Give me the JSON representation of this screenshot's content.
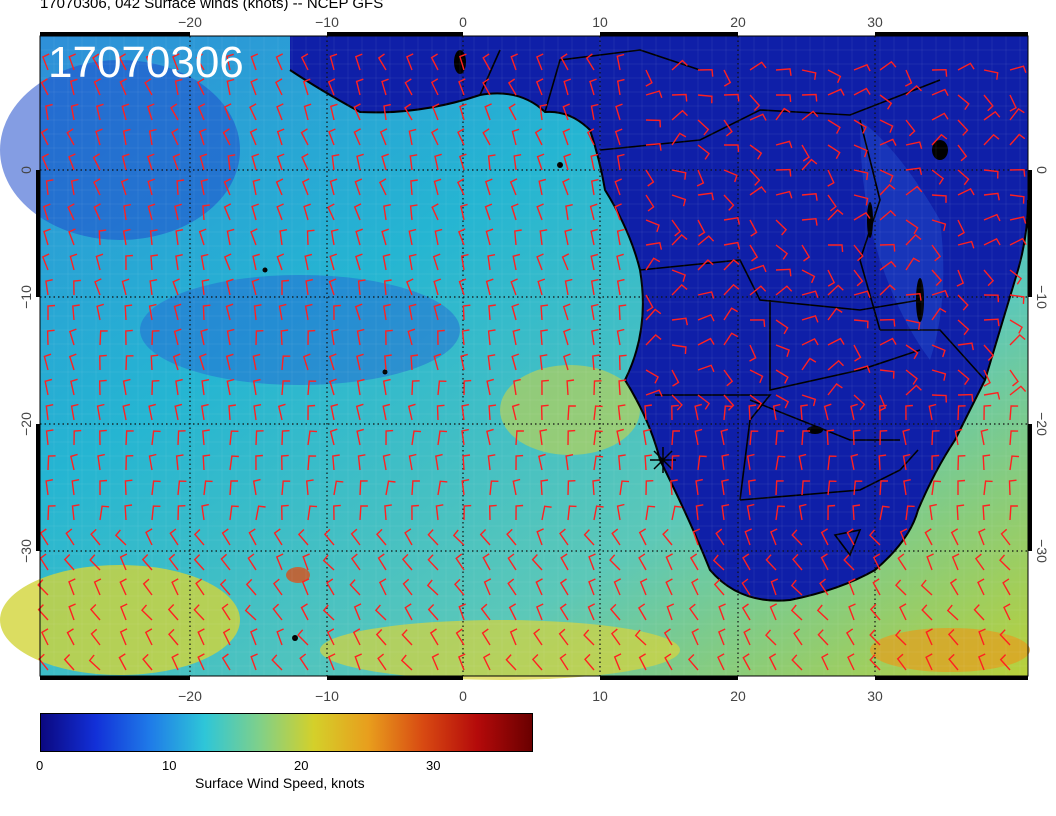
{
  "map": {
    "title": "17070306, 042 Surface winds (knots) -- NCEP GFS",
    "stamp": "17070306",
    "lon_ticks": [
      "−20",
      "−10",
      "0",
      "10",
      "20",
      "30"
    ],
    "lat_ticks": [
      "0",
      "−10",
      "−20",
      "−30"
    ],
    "colors": {
      "ocean_low": "#1f45c8",
      "ocean_mid": "#2bb7c9",
      "ocean_high": "#c8d43a",
      "land": "#0d1fa8",
      "barb": "#ff2a2a",
      "coast": "#000000"
    }
  },
  "colorbar": {
    "label": "Surface Wind Speed, knots",
    "ticks": [
      "0",
      "10",
      "20",
      "30"
    ],
    "stops": [
      "#0b0880",
      "#1230d8",
      "#1f7be8",
      "#2ec6d8",
      "#7fd08a",
      "#d4d02a",
      "#e89e1d",
      "#d84a12",
      "#b40a0a",
      "#6a0000"
    ]
  }
}
